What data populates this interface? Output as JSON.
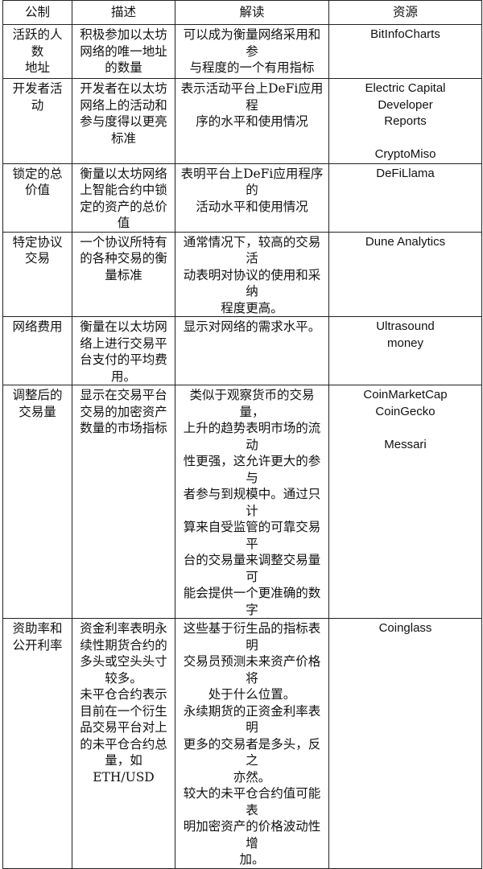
{
  "headers": [
    "公制",
    "描述",
    "解读",
    "资源"
  ],
  "rows": [
    {
      "metric": "活跃的人\n数\n地址",
      "description": "积极参加以太坊\n网络的唯一地址\n的数量",
      "interpretation": "可以成为衡量网络采用和参\n与程度的一个有用指标",
      "source": "BitInfoCharts"
    },
    {
      "metric": "开发者活\n动",
      "description": "开发者在以太坊\n网络上的活动和\n参与度得以更亮\n标准",
      "interpretation": "表示活动平台上DeFi应用程\n序的水平和使用情况",
      "source": "Electric Capital\nDeveloper\nReports\n\nCryptoMiso"
    },
    {
      "metric": "锁定的总\n价值",
      "description": "衡量以太坊网络\n上智能合约中锁\n定的资产的总价\n值",
      "interpretation": "表明平台上DeFi应用程序的\n活动水平和使用情况",
      "source": "DeFiLlama"
    },
    {
      "metric": "特定协议\n交易",
      "description": "一个协议所特有\n的各种交易的衡\n量标准",
      "interpretation": "通常情况下，较高的交易活\n动表明对协议的使用和采纳\n程度更高。",
      "source": "Dune  Analytics"
    },
    {
      "metric": "网络费用",
      "description": "衡量在以太坊网\n络上进行交易平\n台支付的平均费\n用。",
      "interpretation": "显示对网络的需求水平。",
      "source": "Ultrasound\nmoney"
    },
    {
      "metric": "调整后的\n交易量",
      "description": "显示在交易平台\n交易的加密资产\n数量的市场指标",
      "interpretation": "类似于观察货币的交易量，\n上升的趋势表明市场的流动\n性更强，这允许更大的参与\n者参与到规模中。通过只计\n算来自受监管的可靠交易平\n台的交易量来调整交易量可\n能会提供一个更准确的数字",
      "source": "CoinMarketCap\nCoinGecko\n\nMessari"
    },
    {
      "metric": "资助率和\n公开利率",
      "description": "资金利率表明永\n续性期货合约的\n多头或空头头寸\n较多。\n未平仓合约表示\n目前在一个衍生\n品交易平台对上\n的未平仓合约总\n量，如ETH/USD",
      "interpretation": "这些基于衍生品的指标表明\n交易员预测未来资产价格将\n处于什么位置。\n永续期货的正资金利率表明\n更多的交易者是多头，反之\n亦然。\n较大的未平仓合约值可能表\n明加密资产的价格波动性增\n加。",
      "source": "Coinglass"
    }
  ]
}
